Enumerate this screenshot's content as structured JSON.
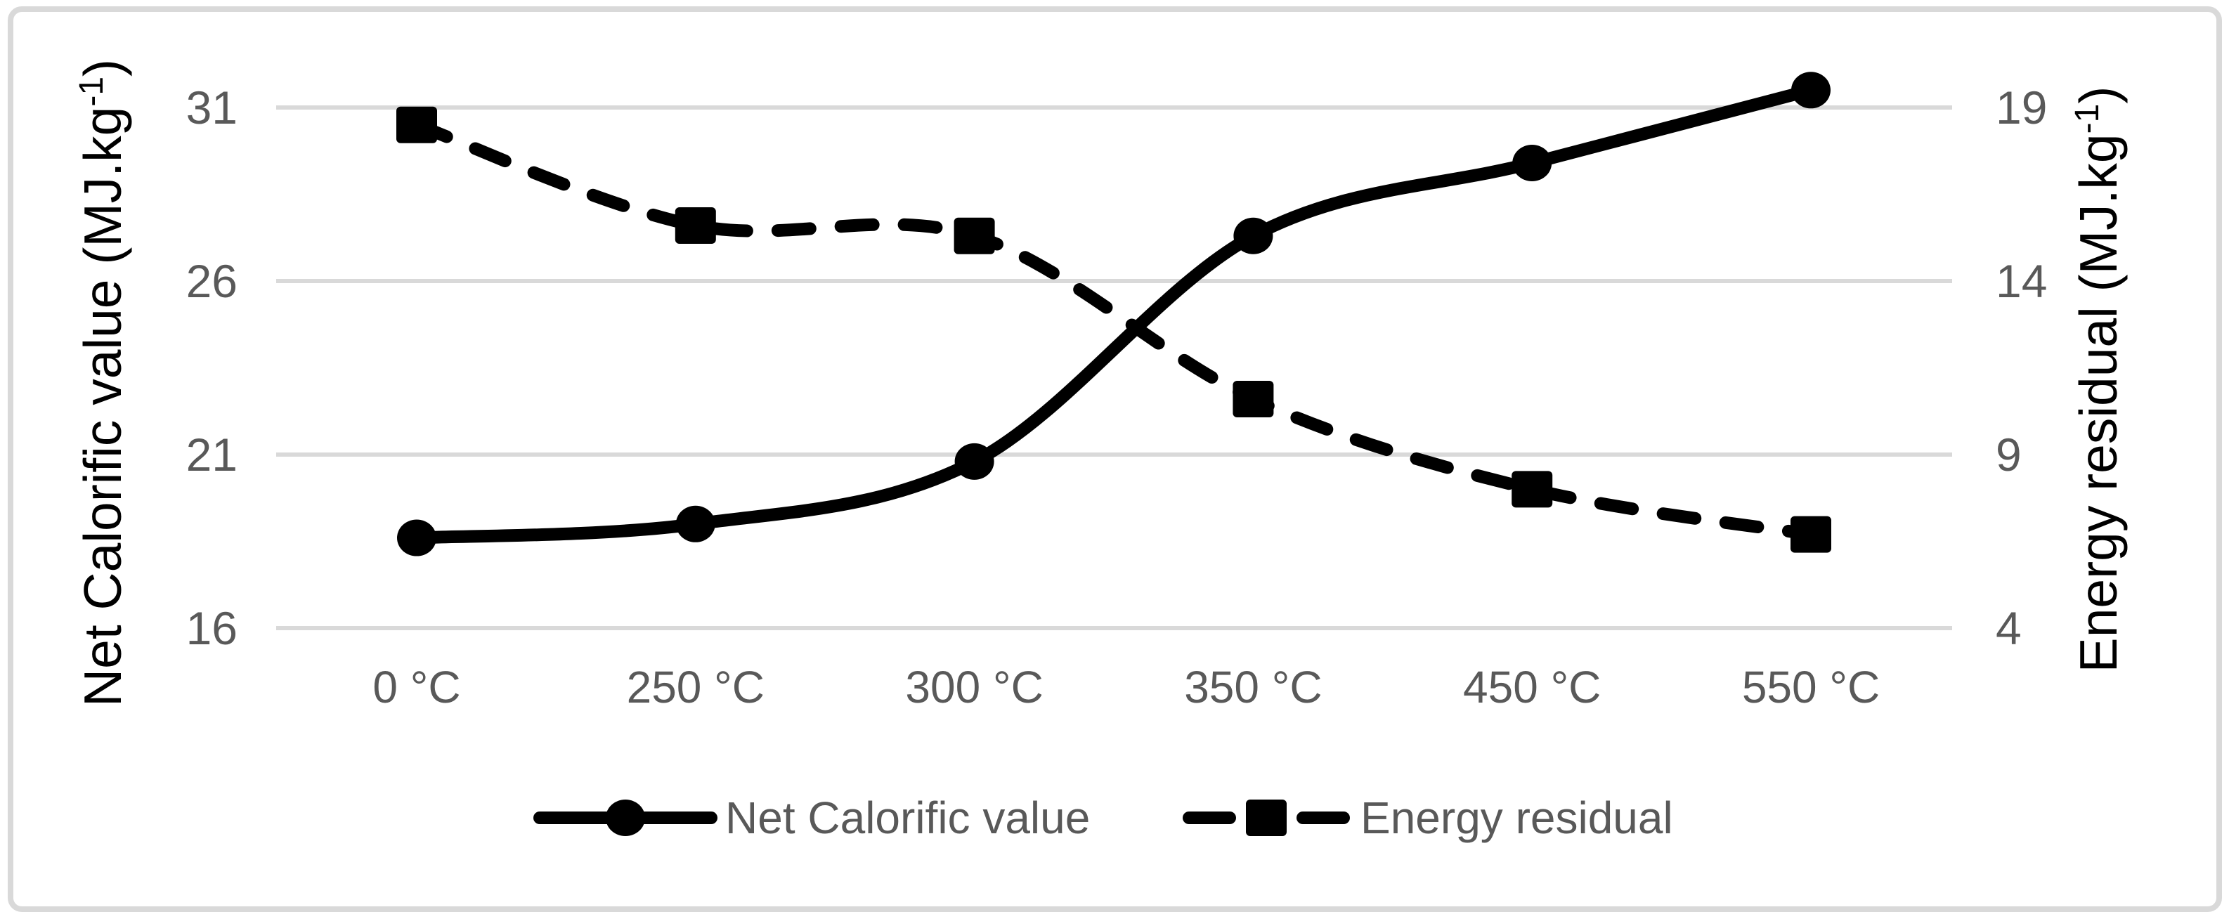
{
  "figure": {
    "background": "#ffffff",
    "border_color": "#d9d9d9"
  },
  "chart_data": {
    "type": "line",
    "categories": [
      "0 °C",
      "250 °C",
      "300 °C",
      "350 °C",
      "450 °C",
      "550 °C"
    ],
    "series": [
      {
        "name": "Net Calorific value",
        "axis": "left",
        "values": [
          18.6,
          19.0,
          20.8,
          27.3,
          29.4,
          31.5
        ],
        "line_style": "solid",
        "marker": "circle",
        "color": "#000000"
      },
      {
        "name": "Energy residual",
        "axis": "right",
        "values": [
          18.5,
          15.6,
          15.3,
          10.6,
          8.0,
          6.7
        ],
        "line_style": "dashed",
        "marker": "square",
        "color": "#000000"
      }
    ],
    "left_axis": {
      "title": "Net Calorific value (MJ.kg⁻¹)",
      "title_parts": {
        "before": "Net Calorific value (MJ.kg",
        "sup": "-1",
        "after": ")"
      },
      "ticks": [
        "16",
        "21",
        "26",
        "31"
      ],
      "tick_values": [
        16,
        21,
        26,
        31
      ],
      "range": [
        16,
        31
      ]
    },
    "right_axis": {
      "title": "Energy residual (MJ.kg⁻¹)",
      "title_parts": {
        "before": "Energy residual (MJ.kg",
        "sup": "-1",
        "after": ")"
      },
      "ticks": [
        "4",
        "9",
        "14",
        "19"
      ],
      "tick_values": [
        4,
        9,
        14,
        19
      ],
      "range": [
        4,
        19
      ]
    },
    "xlabel": "",
    "title": "",
    "grid": "horizontal",
    "legend_position": "bottom",
    "legend": [
      "Net Calorific value",
      "Energy residual"
    ],
    "colors": {
      "grid": "#d9d9d9",
      "tick_text": "#595959",
      "axis_title_text": "#000000",
      "legend_text": "#595959",
      "series_stroke": "#000000",
      "frame": "#d9d9d9"
    }
  }
}
